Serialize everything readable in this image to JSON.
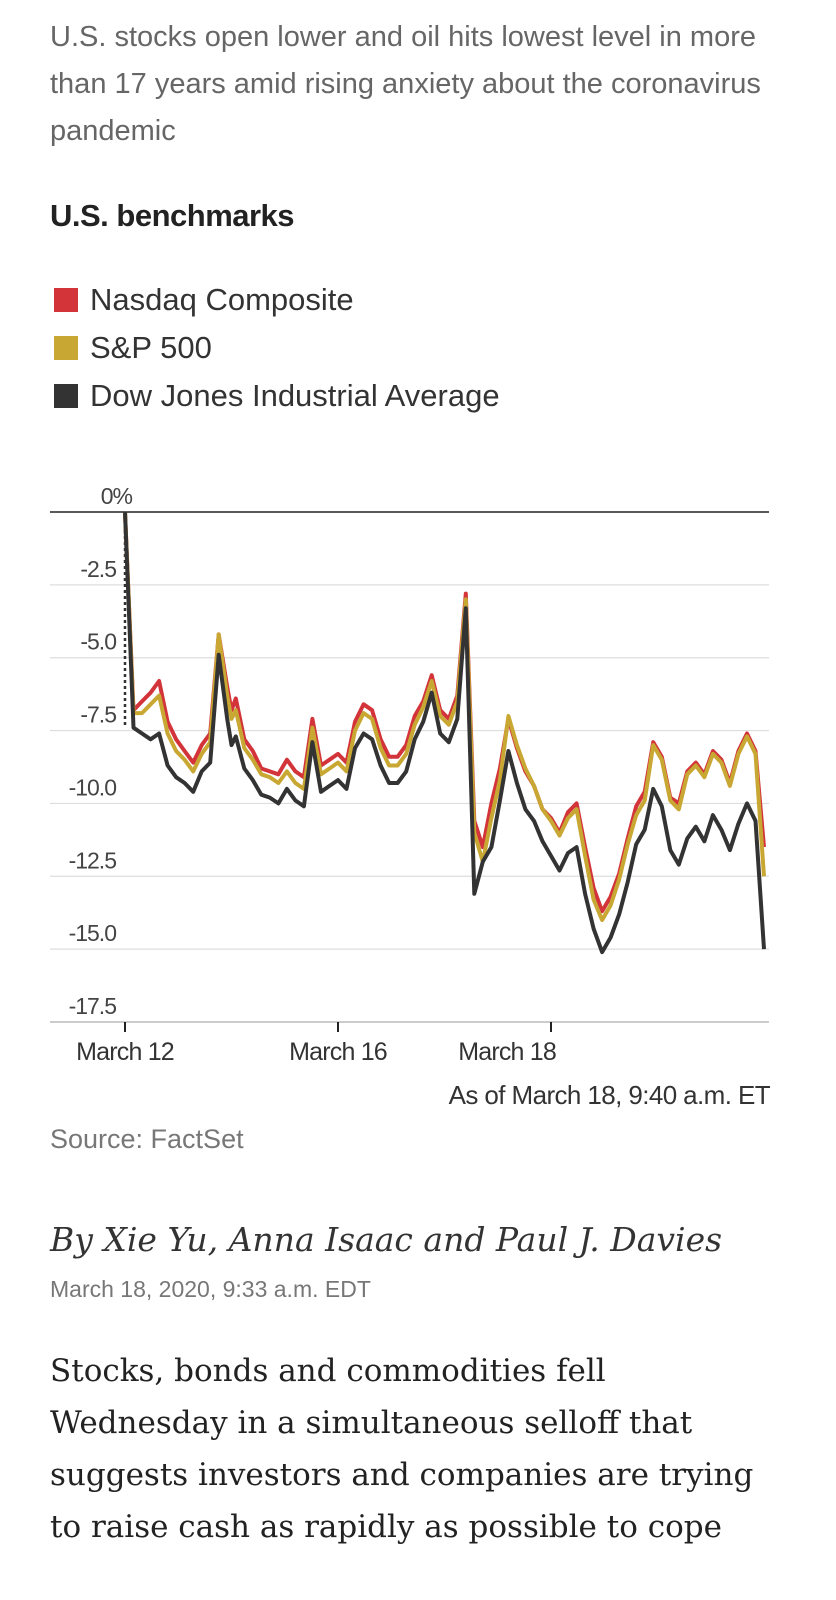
{
  "summary": "U.S. stocks open lower and oil hits lowest level in more than 17 years amid rising anxiety about the coronavirus pandemic",
  "chart_title": "U.S. benchmarks",
  "legend": [
    {
      "label": "Nasdaq Composite",
      "color": "#d2343a"
    },
    {
      "label": "S&P 500",
      "color": "#c9a733"
    },
    {
      "label": "Dow Jones Industrial Average",
      "color": "#333333"
    }
  ],
  "chart_data": {
    "type": "line",
    "title": "U.S. benchmarks",
    "ylabel": "",
    "xlabel": "",
    "ylim": [
      -17.5,
      0
    ],
    "y_ticks": [
      "0%",
      "-2.5",
      "-5.0",
      "-7.5",
      "-10.0",
      "-12.5",
      "-15.0",
      "-17.5"
    ],
    "x_ticks": [
      "March 12",
      "March 16",
      "March 18"
    ],
    "grid": true,
    "x": [
      0,
      0.04,
      0.08,
      0.12,
      0.16,
      0.2,
      0.24,
      0.28,
      0.32,
      0.36,
      0.4,
      0.44,
      0.48,
      0.5,
      0.52,
      0.56,
      0.6,
      0.64,
      0.68,
      0.72,
      0.76,
      0.8,
      0.84,
      0.88,
      0.92,
      0.96,
      1.0,
      1.04,
      1.08,
      1.12,
      1.16,
      1.2,
      1.24,
      1.28,
      1.32,
      1.36,
      1.4,
      1.44,
      1.48,
      1.52,
      1.56,
      1.6,
      1.64,
      1.68,
      1.72,
      1.76,
      1.8,
      1.84,
      1.88,
      1.92,
      1.96,
      2.0,
      2.04,
      2.08,
      2.12,
      2.16,
      2.2,
      2.24,
      2.28,
      2.32,
      2.36,
      2.4,
      2.44,
      2.48,
      2.52,
      2.56,
      2.6,
      2.64,
      2.68,
      2.72,
      2.76,
      2.8,
      2.84,
      2.88,
      2.92,
      2.96,
      3.0
    ],
    "series": [
      {
        "name": "Nasdaq Composite",
        "values": [
          0,
          -6.8,
          -6.5,
          -6.2,
          -5.8,
          -7.2,
          -7.8,
          -8.2,
          -8.6,
          -8.0,
          -7.6,
          -4.2,
          -6.0,
          -6.8,
          -6.4,
          -7.8,
          -8.2,
          -8.8,
          -8.9,
          -9.0,
          -8.5,
          -8.9,
          -9.1,
          -7.1,
          -8.7,
          -8.5,
          -8.3,
          -8.6,
          -7.2,
          -6.6,
          -6.8,
          -7.8,
          -8.4,
          -8.4,
          -8.0,
          -7.0,
          -6.5,
          -5.6,
          -6.8,
          -7.1,
          -6.3,
          -2.8,
          -10.6,
          -11.5,
          -10.0,
          -8.8,
          -7.1,
          -8.1,
          -8.9,
          -9.4,
          -10.2,
          -10.5,
          -11.0,
          -10.3,
          -10.0,
          -11.5,
          -12.9,
          -13.7,
          -13.2,
          -12.4,
          -11.2,
          -10.1,
          -9.6,
          -7.9,
          -8.4,
          -9.8,
          -10.0,
          -8.9,
          -8.6,
          -9.0,
          -8.2,
          -8.5,
          -9.3,
          -8.2,
          -7.6,
          -8.2,
          -11.5
        ]
      },
      {
        "name": "S&P 500",
        "values": [
          0,
          -6.9,
          -6.9,
          -6.6,
          -6.3,
          -7.6,
          -8.2,
          -8.5,
          -8.9,
          -8.3,
          -7.9,
          -4.2,
          -6.3,
          -7.1,
          -6.8,
          -8.1,
          -8.5,
          -9.0,
          -9.1,
          -9.3,
          -8.9,
          -9.3,
          -9.5,
          -7.4,
          -9.0,
          -8.8,
          -8.6,
          -8.9,
          -7.5,
          -6.9,
          -7.1,
          -8.1,
          -8.7,
          -8.7,
          -8.3,
          -7.3,
          -6.7,
          -5.8,
          -7.0,
          -7.3,
          -6.5,
          -3.0,
          -11.0,
          -12.0,
          -10.5,
          -9.2,
          -7.0,
          -8.0,
          -8.8,
          -9.4,
          -10.2,
          -10.6,
          -11.1,
          -10.5,
          -10.2,
          -11.8,
          -13.3,
          -14.0,
          -13.5,
          -12.6,
          -11.4,
          -10.4,
          -9.9,
          -8.0,
          -8.5,
          -9.9,
          -10.2,
          -9.0,
          -8.7,
          -9.1,
          -8.3,
          -8.6,
          -9.4,
          -8.3,
          -7.7,
          -8.3,
          -12.5
        ]
      },
      {
        "name": "Dow Jones Industrial Average",
        "values": [
          0,
          -7.4,
          -7.6,
          -7.8,
          -7.6,
          -8.7,
          -9.1,
          -9.3,
          -9.6,
          -8.9,
          -8.6,
          -4.9,
          -7.1,
          -8.0,
          -7.7,
          -8.8,
          -9.2,
          -9.7,
          -9.8,
          -10.0,
          -9.5,
          -9.9,
          -10.1,
          -7.9,
          -9.6,
          -9.4,
          -9.2,
          -9.5,
          -8.1,
          -7.6,
          -7.8,
          -8.7,
          -9.3,
          -9.3,
          -8.9,
          -7.8,
          -7.2,
          -6.2,
          -7.6,
          -7.9,
          -7.1,
          -3.3,
          -13.1,
          -12.0,
          -11.5,
          -9.9,
          -8.2,
          -9.3,
          -10.2,
          -10.6,
          -11.3,
          -11.8,
          -12.3,
          -11.7,
          -11.5,
          -13.1,
          -14.3,
          -15.1,
          -14.6,
          -13.8,
          -12.7,
          -11.4,
          -10.9,
          -9.5,
          -10.1,
          -11.6,
          -12.1,
          -11.2,
          -10.8,
          -11.3,
          -10.4,
          -10.9,
          -11.6,
          -10.7,
          -10.0,
          -10.6,
          -15.0
        ]
      }
    ]
  },
  "asof": "As of March 18, 9:40 a.m. ET",
  "source": "Source: FactSet",
  "byline": "By Xie Yu, Anna Isaac and Paul J. Davies",
  "timestamp": "March 18, 2020, 9:33 a.m. EDT",
  "body": "Stocks, bonds and commodities fell Wednesday in a simultaneous selloff that suggests investors and companies are trying to raise cash as rapidly as possible to cope"
}
